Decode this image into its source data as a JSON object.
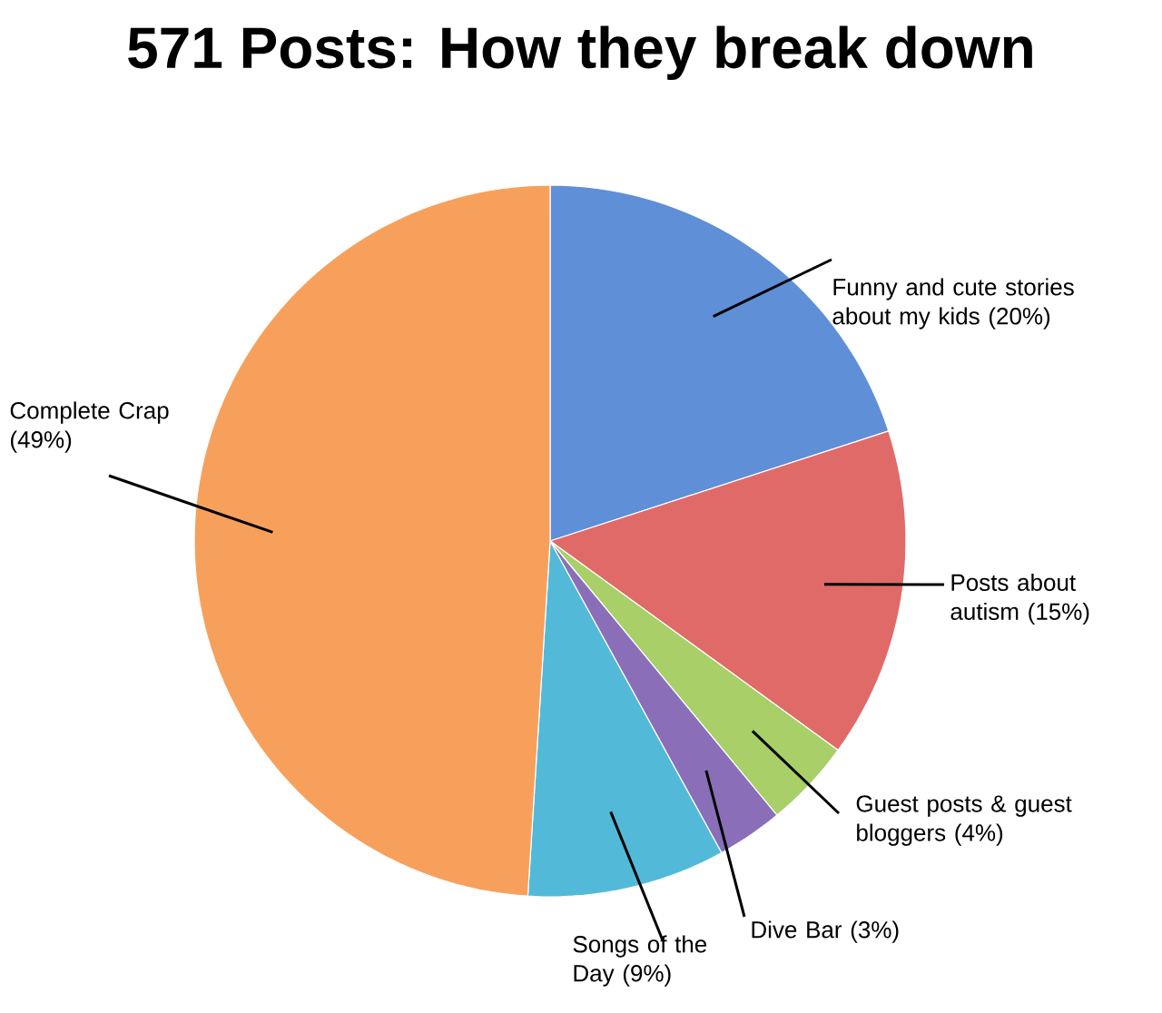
{
  "chart_data": {
    "type": "pie",
    "title": "571 Posts: How they break down",
    "categories": [
      "Funny and cute stories about my kids",
      "Posts about autism",
      "Guest posts & guest bloggers",
      "Dive Bar",
      "Songs of the Day",
      "Complete Crap"
    ],
    "values": [
      20,
      15,
      4,
      3,
      9,
      49
    ],
    "value_labels": [
      "(20%)",
      "(15%)",
      "(4%)",
      "(3%)",
      "(9%)",
      "(49%)"
    ],
    "colors": [
      "#5f8fd6",
      "#e06a68",
      "#a8cf68",
      "#8a6fb8",
      "#52bad8",
      "#f7a05c"
    ]
  }
}
